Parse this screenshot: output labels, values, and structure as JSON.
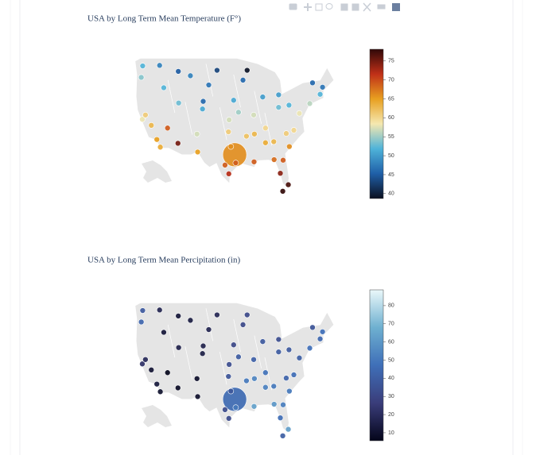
{
  "chart_data": [
    {
      "type": "scattergeo",
      "title": "USA by Long Term Mean Temperature (F°)",
      "lon": [
        -122.3,
        -122.7,
        -117.4,
        -116.2,
        -122.4,
        -121.5,
        -118.2,
        -117.2,
        -119.8,
        -115.1,
        -112.1,
        -111.9,
        -112,
        -108.5,
        -105,
        -106.6,
        -106.4,
        -104.8,
        -100.8,
        -103.2,
        -96,
        -97.3,
        -97.5,
        -96.8,
        -95.7,
        -95.4,
        -98.5,
        -97.4,
        -90.1,
        -93.3,
        -92.1,
        -87.6,
        -83,
        -90.2,
        -94.6,
        -90,
        -86.8,
        -84.4,
        -86.8,
        -81.7,
        -82.5,
        -80.2,
        -80.8,
        -78.6,
        -77,
        -74,
        -71,
        -73.2,
        -70.3,
        -80,
        -83,
        -92.3,
        -84.3,
        -81.8,
        -79.9
      ],
      "lat": [
        47.6,
        45.5,
        47.7,
        43.6,
        37.8,
        38.6,
        34.1,
        32.7,
        36.7,
        36.2,
        33.4,
        40.8,
        46.6,
        45.8,
        39.7,
        35.1,
        31.8,
        41.1,
        46.8,
        44.1,
        41.3,
        37.7,
        35.5,
        32.8,
        31.3,
        29.8,
        29.4,
        27.8,
        30,
        45,
        46.8,
        41.9,
        42.3,
        38.6,
        39.1,
        35.1,
        36.2,
        33.7,
        33.5,
        30.3,
        27.9,
        25.8,
        35.2,
        35.8,
        38.9,
        40.7,
        42.4,
        44.5,
        43.7,
        40.4,
        40,
        34.7,
        30.4,
        24.6,
        32.8
      ],
      "values": [
        52,
        54,
        48,
        52,
        58,
        61,
        65,
        64,
        63,
        69,
        75,
        53,
        45,
        48,
        51,
        57,
        65,
        46,
        43,
        47,
        51,
        57,
        61,
        66,
        66,
        69,
        69,
        72,
        69,
        46,
        39,
        50,
        50,
        57,
        55,
        63,
        60,
        63,
        64,
        69,
        74,
        77,
        61,
        60,
        58,
        56,
        52,
        46,
        47,
        52,
        53,
        62,
        68,
        78,
        66
      ],
      "sizes": [
        7,
        7,
        7,
        7,
        7,
        7,
        7,
        7,
        7,
        7,
        7,
        7,
        7,
        7,
        7,
        7,
        7,
        7,
        7,
        7,
        7,
        7,
        7,
        7,
        30,
        7,
        7,
        7,
        7,
        7,
        7,
        7,
        7,
        7,
        7,
        7,
        7,
        7,
        7,
        7,
        7,
        7,
        7,
        7,
        7,
        7,
        7,
        7,
        7,
        7,
        7,
        7,
        7,
        7,
        7
      ],
      "colorscale": [
        "#0b1020",
        "#1f5fa8",
        "#4fb3d9",
        "#f5e8b0",
        "#e8a020",
        "#c03018",
        "#300808"
      ],
      "clim": [
        38.7,
        78.1
      ],
      "cticks": [
        40,
        45,
        50,
        55,
        60,
        65,
        70,
        75
      ]
    },
    {
      "type": "scattergeo",
      "title": "USA by Long Term Mean Percipitation (in)",
      "lon": [
        -122.3,
        -122.7,
        -117.4,
        -116.2,
        -122.4,
        -121.5,
        -118.2,
        -117.2,
        -119.8,
        -115.1,
        -112.1,
        -111.9,
        -112,
        -108.5,
        -105,
        -106.6,
        -106.4,
        -104.8,
        -100.8,
        -103.2,
        -96,
        -97.3,
        -97.5,
        -96.8,
        -95.7,
        -95.4,
        -98.5,
        -97.4,
        -90.1,
        -93.3,
        -92.1,
        -87.6,
        -83,
        -90.2,
        -94.6,
        -90,
        -86.8,
        -84.4,
        -86.8,
        -81.7,
        -82.5,
        -80.2,
        -80.8,
        -78.6,
        -77,
        -74,
        -71,
        -73.2,
        -70.3,
        -80,
        -83,
        -92.3,
        -84.3,
        -81.8,
        -79.9
      ],
      "lat": [
        47.6,
        45.5,
        47.7,
        43.6,
        37.8,
        38.6,
        34.1,
        32.7,
        36.7,
        36.2,
        33.4,
        40.8,
        46.6,
        45.8,
        39.7,
        35.1,
        31.8,
        41.1,
        46.8,
        44.1,
        41.3,
        37.7,
        35.5,
        32.8,
        31.3,
        29.8,
        29.4,
        27.8,
        30,
        45,
        46.8,
        41.9,
        42.3,
        38.6,
        39.1,
        35.1,
        36.2,
        33.7,
        33.5,
        30.3,
        27.9,
        25.8,
        35.2,
        35.8,
        38.9,
        40.7,
        42.4,
        44.5,
        43.7,
        40.4,
        40,
        34.7,
        30.4,
        24.6,
        32.8
      ],
      "values": [
        38,
        43,
        17,
        12,
        22,
        19,
        13,
        10,
        11,
        6,
        8,
        16,
        12,
        14,
        15,
        9,
        9,
        16,
        18,
        17,
        30,
        33,
        36,
        37,
        45,
        50,
        32,
        32,
        63,
        31,
        31,
        38,
        33,
        41,
        39,
        54,
        48,
        50,
        53,
        52,
        46,
        62,
        42,
        46,
        40,
        47,
        44,
        36,
        47,
        38,
        39,
        50,
        60,
        40,
        50
      ],
      "sizes": [
        7,
        7,
        7,
        7,
        7,
        7,
        7,
        7,
        7,
        7,
        7,
        7,
        7,
        7,
        7,
        7,
        7,
        7,
        7,
        7,
        7,
        7,
        7,
        7,
        30,
        7,
        7,
        7,
        7,
        7,
        7,
        7,
        7,
        7,
        7,
        7,
        7,
        7,
        7,
        7,
        7,
        7,
        7,
        7,
        7,
        7,
        7,
        7,
        7,
        7,
        7,
        7,
        7,
        7,
        7
      ],
      "colorscale": [
        "#04051a",
        "#3a3d7a",
        "#3f6fb8",
        "#6eb0d0",
        "#eaf8fa"
      ],
      "clim": [
        5.6,
        88.7
      ],
      "cticks": [
        10,
        20,
        30,
        40,
        50,
        60,
        70,
        80
      ]
    }
  ]
}
